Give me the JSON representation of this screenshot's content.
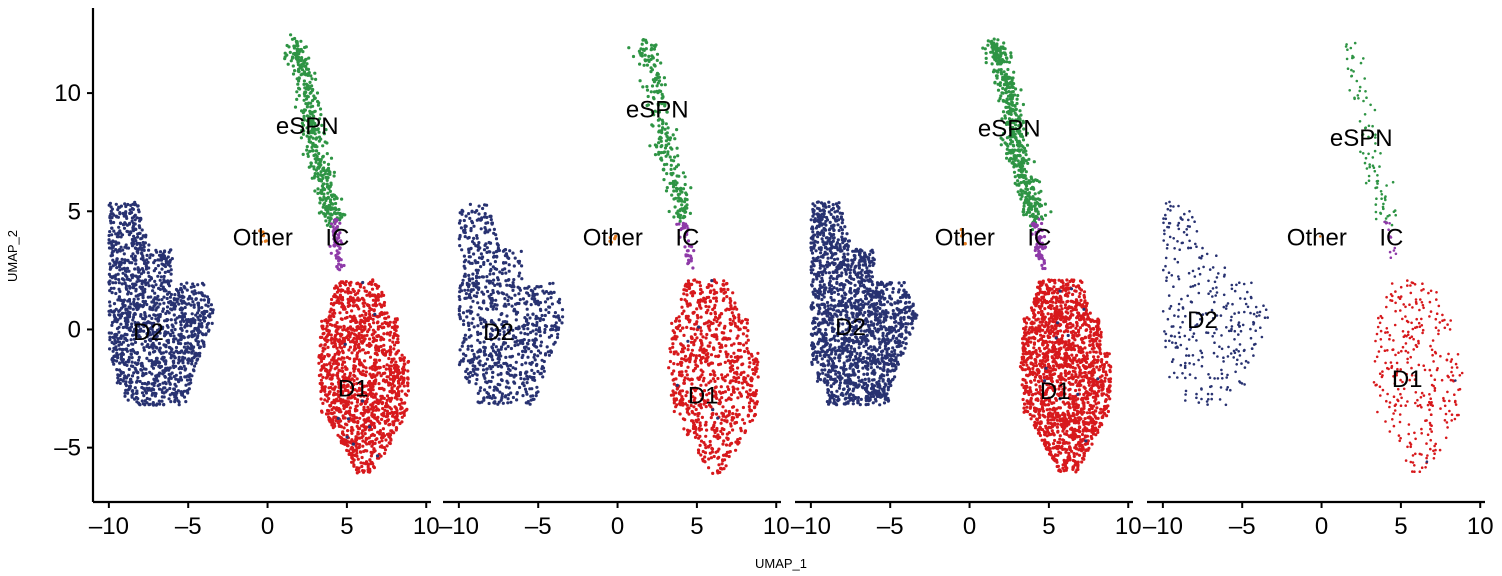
{
  "title": "",
  "colors": {
    "D1": "#d7191c",
    "D2": "#283271",
    "eSPN": "#2e9444",
    "IC": "#8e3aa8",
    "Other": "#e67e22",
    "axis": "#000000"
  },
  "axes": {
    "xlabel": "UMAP_1",
    "ylabel": "UMAP_2",
    "xlim": [
      -11,
      10.3
    ],
    "ylim": [
      -7.3,
      13.6
    ],
    "xticks": [
      -10,
      -5,
      0,
      5,
      10
    ],
    "yticks": [
      -5,
      0,
      5,
      10
    ],
    "xtick_labels": [
      "–10",
      "–5",
      "0",
      "5",
      "10"
    ],
    "ytick_labels": [
      "–5",
      "0",
      "5",
      "10"
    ]
  },
  "chart_data": {
    "type": "scatter",
    "xlabel": "UMAP_1",
    "ylabel": "UMAP_2",
    "xlim": [
      -11,
      10.3
    ],
    "ylim": [
      -7.3,
      13.6
    ],
    "grid": false,
    "legend": "none",
    "cluster_labels": [
      "D2",
      "D1",
      "eSPN",
      "IC",
      "Other"
    ],
    "panels": [
      {
        "density": 1.0,
        "labels": [
          {
            "text": "eSPN",
            "x": 2.5,
            "y": 8.6
          },
          {
            "text": "Other",
            "x": -0.3,
            "y": 3.9
          },
          {
            "text": "IC",
            "x": 4.4,
            "y": 3.9
          },
          {
            "text": "D2",
            "x": -7.5,
            "y": -0.1
          },
          {
            "text": "D1",
            "x": 5.4,
            "y": -2.5
          }
        ]
      },
      {
        "density": 0.6,
        "labels": [
          {
            "text": "eSPN",
            "x": 2.5,
            "y": 9.3
          },
          {
            "text": "Other",
            "x": -0.3,
            "y": 3.9
          },
          {
            "text": "IC",
            "x": 4.4,
            "y": 3.9
          },
          {
            "text": "D2",
            "x": -7.5,
            "y": -0.1
          },
          {
            "text": "D1",
            "x": 5.4,
            "y": -2.8
          }
        ]
      },
      {
        "density": 1.2,
        "labels": [
          {
            "text": "eSPN",
            "x": 2.5,
            "y": 8.5
          },
          {
            "text": "Other",
            "x": -0.3,
            "y": 3.9
          },
          {
            "text": "IC",
            "x": 4.4,
            "y": 3.9
          },
          {
            "text": "D2",
            "x": -7.5,
            "y": 0.1
          },
          {
            "text": "D1",
            "x": 5.4,
            "y": -2.6
          }
        ]
      },
      {
        "density": 0.22,
        "labels": [
          {
            "text": "eSPN",
            "x": 2.5,
            "y": 8.1
          },
          {
            "text": "Other",
            "x": -0.3,
            "y": 3.9
          },
          {
            "text": "IC",
            "x": 4.4,
            "y": 3.9
          },
          {
            "text": "D2",
            "x": -7.5,
            "y": 0.4
          },
          {
            "text": "D1",
            "x": 5.4,
            "y": -2.1
          }
        ]
      }
    ],
    "clusters": {
      "D2": {
        "center": [
          -7.3,
          0.5
        ],
        "spread": [
          2.6,
          3.0
        ],
        "count": 1400
      },
      "D1": {
        "center": [
          6.0,
          -1.8
        ],
        "spread": [
          2.0,
          3.0
        ],
        "count": 1400
      },
      "eSPN": {
        "spine": [
          [
            1.5,
            12.2
          ],
          [
            2.2,
            11.0
          ],
          [
            2.6,
            9.5
          ],
          [
            2.9,
            8.0
          ],
          [
            3.3,
            6.8
          ],
          [
            3.8,
            5.5
          ],
          [
            4.2,
            4.6
          ]
        ],
        "count": 420
      },
      "IC": {
        "spine": [
          [
            4.2,
            4.6
          ],
          [
            4.4,
            3.6
          ],
          [
            4.6,
            2.6
          ]
        ],
        "count": 60
      },
      "Other": {
        "center": [
          -0.3,
          3.9
        ],
        "count": 6
      }
    }
  }
}
